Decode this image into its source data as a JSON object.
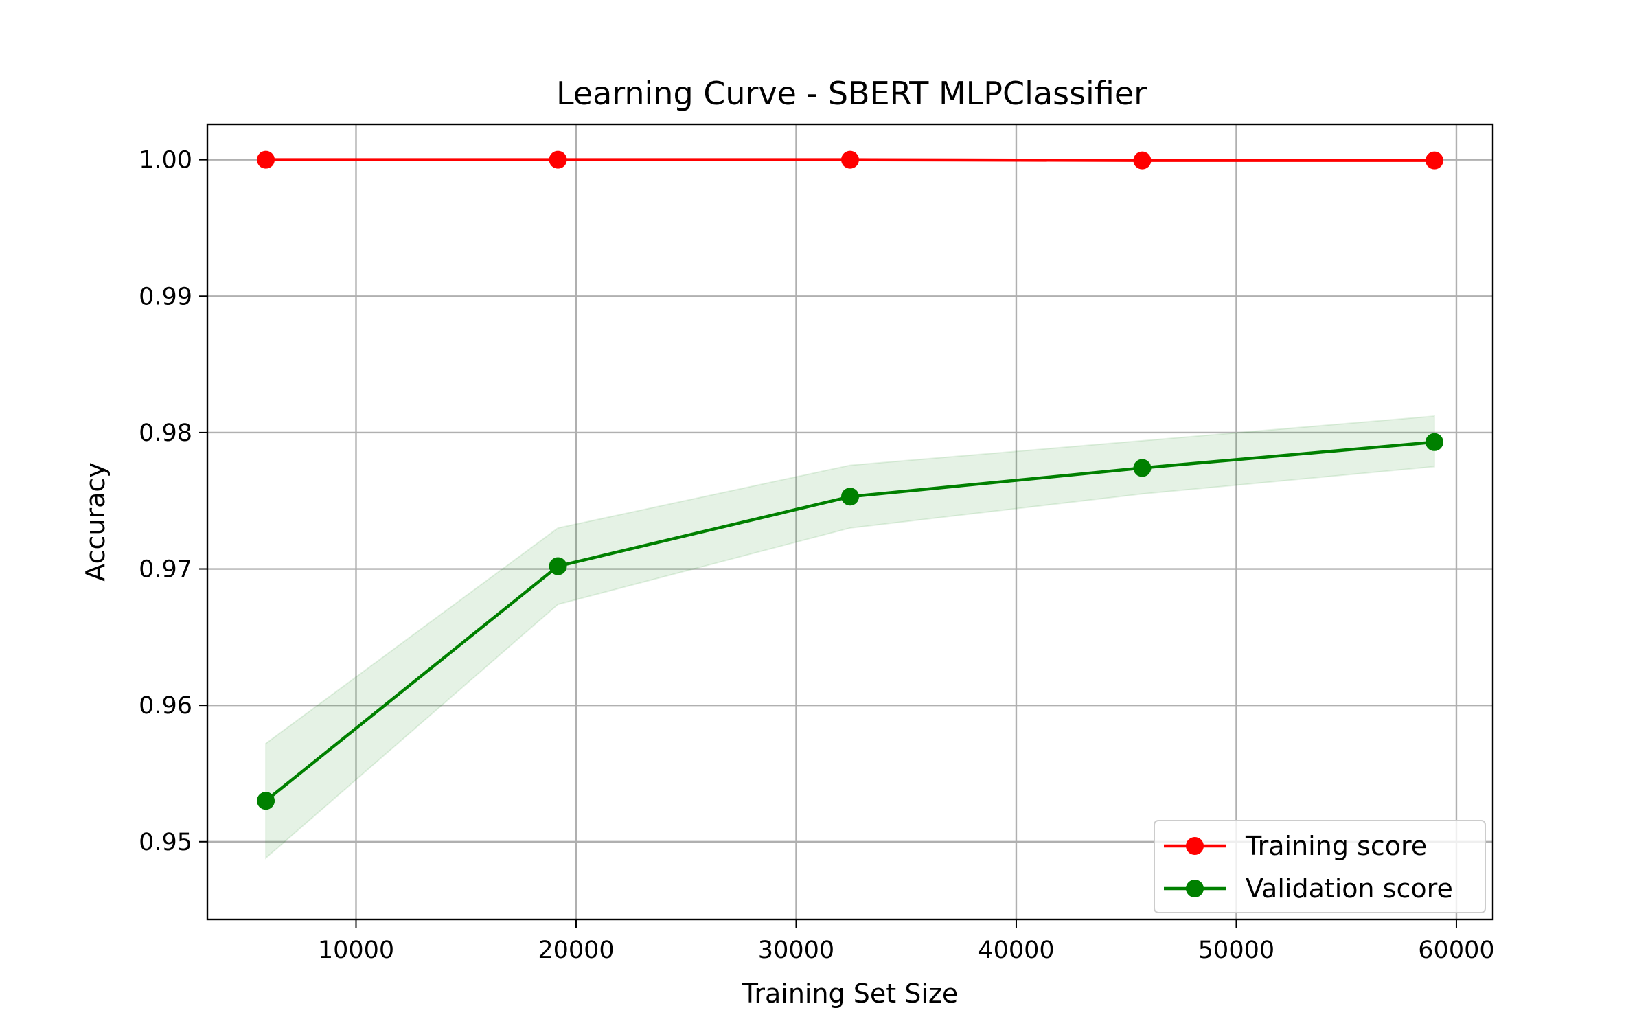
{
  "chart_data": {
    "type": "line",
    "title": "Learning Curve - SBERT MLPClassifier",
    "xlabel": "Training Set Size",
    "ylabel": "Accuracy",
    "x": [
      5900,
      19175,
      32450,
      45725,
      59000
    ],
    "xlim": [
      3245,
      61655
    ],
    "ylim": [
      0.9443,
      1.0026
    ],
    "xticks": [
      10000,
      20000,
      30000,
      40000,
      50000,
      60000
    ],
    "xtick_labels": [
      "10000",
      "20000",
      "30000",
      "40000",
      "50000",
      "60000"
    ],
    "yticks": [
      0.95,
      0.96,
      0.97,
      0.98,
      0.99,
      1.0
    ],
    "ytick_labels": [
      "0.95",
      "0.96",
      "0.97",
      "0.98",
      "0.99",
      "1.00"
    ],
    "grid": true,
    "legend_position": "lower-right",
    "series": [
      {
        "name": "Training score",
        "color": "#ff0000",
        "values": [
          1.0,
          1.0,
          1.0,
          0.99995,
          0.99995
        ],
        "band_lower": [
          1.0,
          1.0,
          1.0,
          0.99995,
          0.99995
        ],
        "band_upper": [
          1.0,
          1.0,
          1.0,
          0.99995,
          0.99995
        ]
      },
      {
        "name": "Validation score",
        "color": "#008000",
        "values": [
          0.953,
          0.9702,
          0.9753,
          0.9774,
          0.9793
        ],
        "band_lower": [
          0.9488,
          0.9674,
          0.973,
          0.9755,
          0.9775
        ],
        "band_upper": [
          0.9572,
          0.973,
          0.9776,
          0.9794,
          0.9812
        ]
      }
    ]
  }
}
